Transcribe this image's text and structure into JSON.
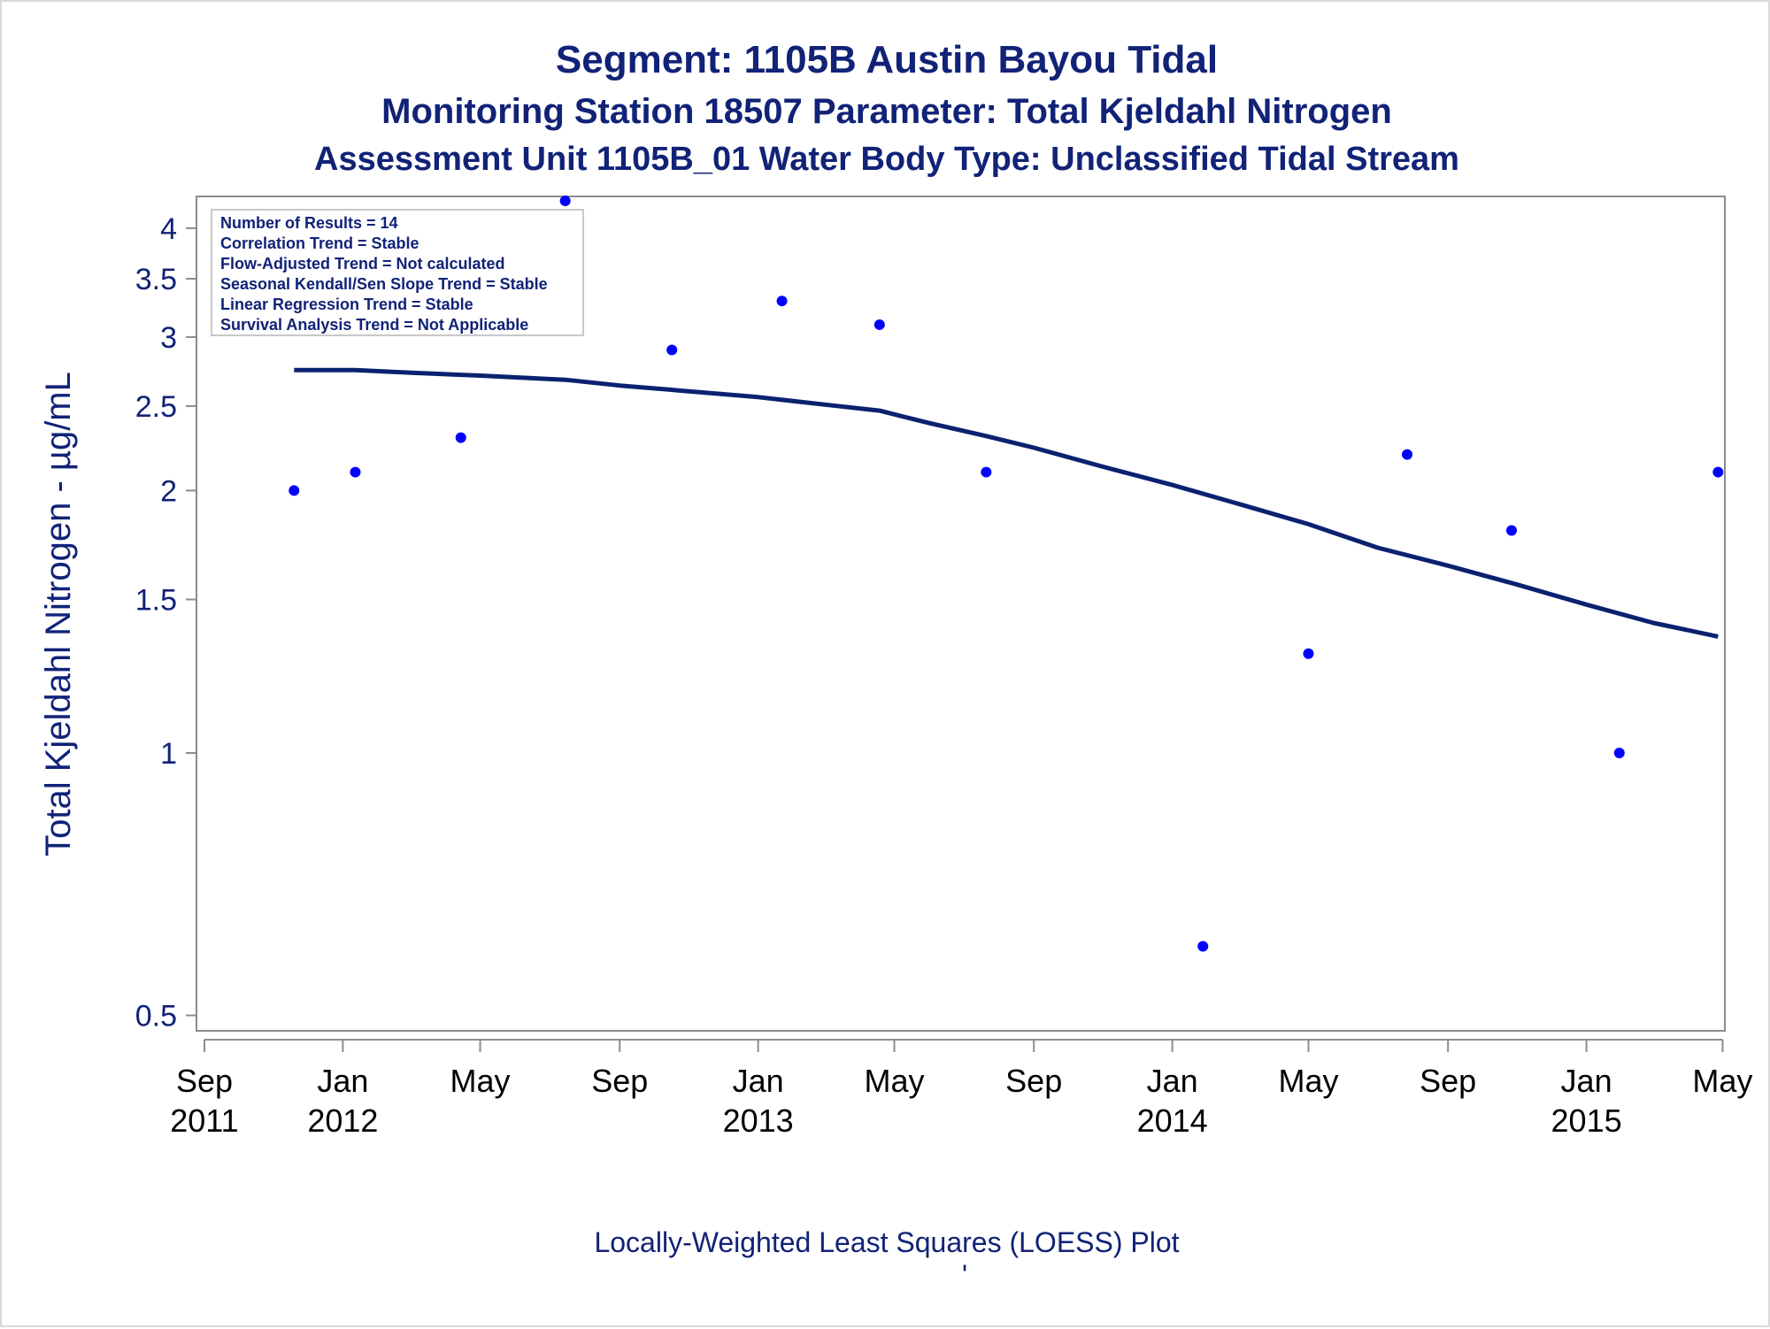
{
  "titles": {
    "line1": "Segment: 1105B  Austin Bayou Tidal",
    "line2": "Monitoring Station 18507 Parameter: Total Kjeldahl Nitrogen",
    "line3": "Assessment Unit 1105B_01   Water Body Type: Unclassified Tidal Stream"
  },
  "inset_lines": [
    "Number of Results = 14",
    "Correlation Trend = Stable",
    "Flow-Adjusted Trend = Not calculated",
    "Seasonal Kendall/Sen Slope Trend = Stable",
    "Linear Regression Trend = Stable",
    "Survival Analysis Trend = Not Applicable"
  ],
  "footnote": "Locally-Weighted Least Squares (LOESS) Plot",
  "footnote_mark": "'",
  "colors": {
    "text": "#112277",
    "points": "#0000ff",
    "loess_line": "#0b2170",
    "axis": "#8c8c8c"
  },
  "chart_data": {
    "type": "scatter",
    "ylabel": "Total Kjeldahl Nitrogen -  µg/mL",
    "y_scale": "log",
    "ylim": [
      0.48,
      4.35
    ],
    "y_ticks": [
      {
        "value": 0.5,
        "label": "0.5"
      },
      {
        "value": 1,
        "label": "1"
      },
      {
        "value": 1.5,
        "label": "1.5"
      },
      {
        "value": 2,
        "label": "2"
      },
      {
        "value": 2.5,
        "label": "2.5"
      },
      {
        "value": 3,
        "label": "3"
      },
      {
        "value": 3.5,
        "label": "3.5"
      },
      {
        "value": 4,
        "label": "4"
      }
    ],
    "xlim": [
      "2011-08-25",
      "2015-05-03"
    ],
    "x_ticks": [
      {
        "date": "2011-09-01",
        "month": "Sep",
        "year": "2011"
      },
      {
        "date": "2012-01-01",
        "month": "Jan",
        "year": "2012"
      },
      {
        "date": "2012-05-01",
        "month": "May",
        "year": ""
      },
      {
        "date": "2012-09-01",
        "month": "Sep",
        "year": ""
      },
      {
        "date": "2013-01-01",
        "month": "Jan",
        "year": "2013"
      },
      {
        "date": "2013-05-01",
        "month": "May",
        "year": ""
      },
      {
        "date": "2013-09-01",
        "month": "Sep",
        "year": ""
      },
      {
        "date": "2014-01-01",
        "month": "Jan",
        "year": "2014"
      },
      {
        "date": "2014-05-01",
        "month": "May",
        "year": ""
      },
      {
        "date": "2014-09-01",
        "month": "Sep",
        "year": ""
      },
      {
        "date": "2015-01-01",
        "month": "Jan",
        "year": "2015"
      },
      {
        "date": "2015-05-01",
        "month": "May",
        "year": ""
      }
    ],
    "points": [
      {
        "x": "2011-11-19",
        "y": 2.0
      },
      {
        "x": "2012-01-12",
        "y": 2.1
      },
      {
        "x": "2012-04-14",
        "y": 2.3
      },
      {
        "x": "2012-07-15",
        "y": 4.3
      },
      {
        "x": "2012-10-17",
        "y": 2.9
      },
      {
        "x": "2013-01-22",
        "y": 3.3
      },
      {
        "x": "2013-04-18",
        "y": 3.1
      },
      {
        "x": "2013-07-21",
        "y": 2.1
      },
      {
        "x": "2014-01-28",
        "y": 0.6
      },
      {
        "x": "2014-05-01",
        "y": 1.3
      },
      {
        "x": "2014-07-27",
        "y": 2.2
      },
      {
        "x": "2014-10-27",
        "y": 1.8
      },
      {
        "x": "2015-01-30",
        "y": 1.0
      },
      {
        "x": "2015-04-27",
        "y": 2.1
      }
    ],
    "loess": [
      {
        "x": "2011-11-19",
        "y": 2.75
      },
      {
        "x": "2012-01-12",
        "y": 2.75
      },
      {
        "x": "2012-03-01",
        "y": 2.73
      },
      {
        "x": "2012-05-01",
        "y": 2.71
      },
      {
        "x": "2012-07-15",
        "y": 2.68
      },
      {
        "x": "2012-09-01",
        "y": 2.64
      },
      {
        "x": "2012-11-01",
        "y": 2.6
      },
      {
        "x": "2013-01-01",
        "y": 2.56
      },
      {
        "x": "2013-03-01",
        "y": 2.51
      },
      {
        "x": "2013-04-18",
        "y": 2.47
      },
      {
        "x": "2013-06-01",
        "y": 2.39
      },
      {
        "x": "2013-07-21",
        "y": 2.31
      },
      {
        "x": "2013-09-01",
        "y": 2.24
      },
      {
        "x": "2013-11-01",
        "y": 2.13
      },
      {
        "x": "2014-01-01",
        "y": 2.03
      },
      {
        "x": "2014-03-01",
        "y": 1.93
      },
      {
        "x": "2014-05-01",
        "y": 1.83
      },
      {
        "x": "2014-07-01",
        "y": 1.72
      },
      {
        "x": "2014-09-01",
        "y": 1.64
      },
      {
        "x": "2014-11-01",
        "y": 1.56
      },
      {
        "x": "2015-01-01",
        "y": 1.48
      },
      {
        "x": "2015-03-01",
        "y": 1.41
      },
      {
        "x": "2015-04-27",
        "y": 1.36
      }
    ]
  }
}
